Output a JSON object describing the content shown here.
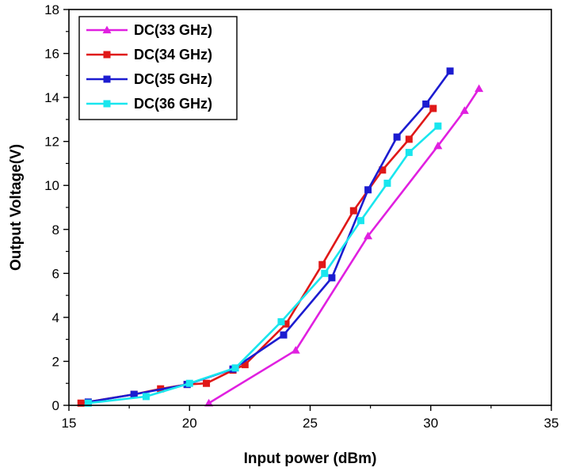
{
  "chart_data": {
    "type": "line",
    "title": "",
    "xlabel": "Input power (dBm)",
    "ylabel": "Output Voltage(V)",
    "xlim": [
      15,
      35
    ],
    "ylim": [
      0,
      18
    ],
    "xticks": [
      15,
      20,
      25,
      30,
      35
    ],
    "yticks": [
      0,
      2,
      4,
      6,
      8,
      10,
      12,
      14,
      16,
      18
    ],
    "xtick_labels": [
      "15",
      "20",
      "25",
      "30",
      "35"
    ],
    "ytick_labels": [
      "0",
      "2",
      "4",
      "6",
      "8",
      "10",
      "12",
      "14",
      "16",
      "18"
    ],
    "grid": false,
    "legend_position": "top-left",
    "series": [
      {
        "name": "DC(33 GHz)",
        "color": "#e020e0",
        "marker": "triangle",
        "x": [
          20.8,
          24.4,
          27.4,
          30.3,
          31.4,
          32.0
        ],
        "y": [
          0.1,
          2.5,
          7.7,
          11.8,
          13.4,
          14.4
        ]
      },
      {
        "name": "DC(34 GHz)",
        "color": "#e01818",
        "marker": "square",
        "x": [
          15.5,
          17.7,
          18.8,
          19.9,
          20.7,
          21.8,
          22.3,
          24.0,
          25.5,
          26.8,
          28.0,
          29.1,
          30.1
        ],
        "y": [
          0.1,
          0.5,
          0.75,
          0.95,
          1.0,
          1.6,
          1.85,
          3.7,
          6.4,
          8.85,
          10.7,
          12.1,
          13.5
        ]
      },
      {
        "name": "DC(35 GHz)",
        "color": "#1c1cd0",
        "marker": "square",
        "x": [
          15.8,
          17.7,
          19.9,
          21.8,
          23.9,
          25.9,
          27.4,
          28.6,
          29.8,
          30.8
        ],
        "y": [
          0.15,
          0.5,
          0.95,
          1.65,
          3.2,
          5.8,
          9.8,
          12.2,
          13.7,
          15.2
        ]
      },
      {
        "name": "DC(36 GHz)",
        "color": "#19e6ee",
        "marker": "square",
        "x": [
          15.8,
          18.2,
          20.0,
          21.9,
          23.8,
          25.6,
          27.1,
          28.2,
          29.1,
          30.3
        ],
        "y": [
          0.1,
          0.4,
          1.0,
          1.7,
          3.8,
          6.0,
          8.4,
          10.1,
          11.5,
          12.7
        ]
      }
    ]
  }
}
